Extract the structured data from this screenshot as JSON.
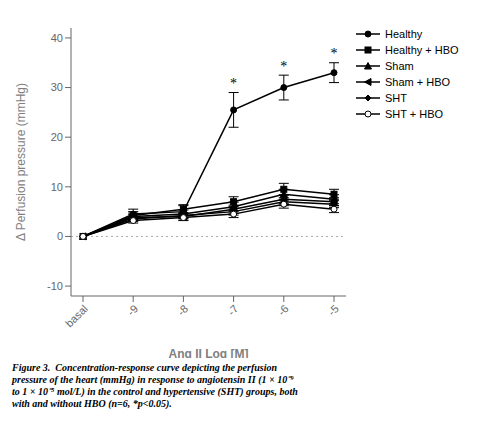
{
  "chart_data": {
    "type": "line",
    "xlabel": "Ang II Log [M]",
    "ylabel": "Δ Perfusion pressure (mmHg)",
    "categories": [
      "basal",
      "-9",
      "-8",
      "-7",
      "-6",
      "-5"
    ],
    "series": [
      {
        "name": "Healthy",
        "values": [
          0,
          4.5,
          5.0,
          25.5,
          30.0,
          33.0
        ],
        "errors": [
          0.0,
          1.0,
          1.2,
          3.5,
          2.5,
          2.0
        ],
        "marker": "circle",
        "color": "#000000"
      },
      {
        "name": "Healthy + HBO",
        "values": [
          0,
          4.2,
          5.5,
          7.0,
          9.5,
          8.5
        ],
        "errors": [
          0.0,
          0.8,
          0.9,
          1.0,
          1.2,
          1.0
        ],
        "marker": "square",
        "color": "#000000"
      },
      {
        "name": "Sham",
        "values": [
          0,
          4.0,
          4.5,
          6.0,
          8.5,
          7.5
        ],
        "errors": [
          0.0,
          0.7,
          0.8,
          0.9,
          1.0,
          0.9
        ],
        "marker": "triangle_up",
        "color": "#000000"
      },
      {
        "name": "Sham + HBO",
        "values": [
          0,
          3.8,
          4.0,
          5.5,
          7.5,
          7.0
        ],
        "errors": [
          0.0,
          0.6,
          0.7,
          0.8,
          0.9,
          0.8
        ],
        "marker": "triangle_left",
        "color": "#000000"
      },
      {
        "name": "SHT",
        "values": [
          0,
          3.5,
          4.2,
          5.0,
          7.0,
          6.5
        ],
        "errors": [
          0.0,
          0.5,
          0.6,
          0.7,
          0.8,
          0.7
        ],
        "marker": "diamond",
        "color": "#000000"
      },
      {
        "name": "SHT + HBO",
        "values": [
          0,
          3.2,
          3.8,
          4.5,
          6.5,
          5.5
        ],
        "errors": [
          0.0,
          0.5,
          0.6,
          0.7,
          0.8,
          0.7
        ],
        "marker": "circle_open",
        "color": "#000000"
      }
    ],
    "ylim": [
      -12,
      42
    ],
    "yticks": [
      -10,
      0,
      10,
      20,
      30,
      40
    ],
    "annotations": [
      {
        "x": "-7",
        "y": 29.5,
        "text": "*"
      },
      {
        "x": "-6",
        "y": 33.0,
        "text": "*"
      },
      {
        "x": "-5",
        "y": 35.5,
        "text": "*"
      }
    ],
    "reference_lines": [
      {
        "y": 0,
        "line_style": "dotted",
        "color": "#aaaaaa"
      }
    ],
    "caption": "Figure 3.  Concentration-response curve depicting the perfusion\npressure of the heart (mmHg) in response to angiotensin II (1 × 10⁻⁹\nto 1 × 10⁻⁵ mol/L) in the control and hypertensive (SHT) groups, both\nwith and without HBO (n=6, *p<0.05).",
    "legend": "right",
    "grid": false
  }
}
